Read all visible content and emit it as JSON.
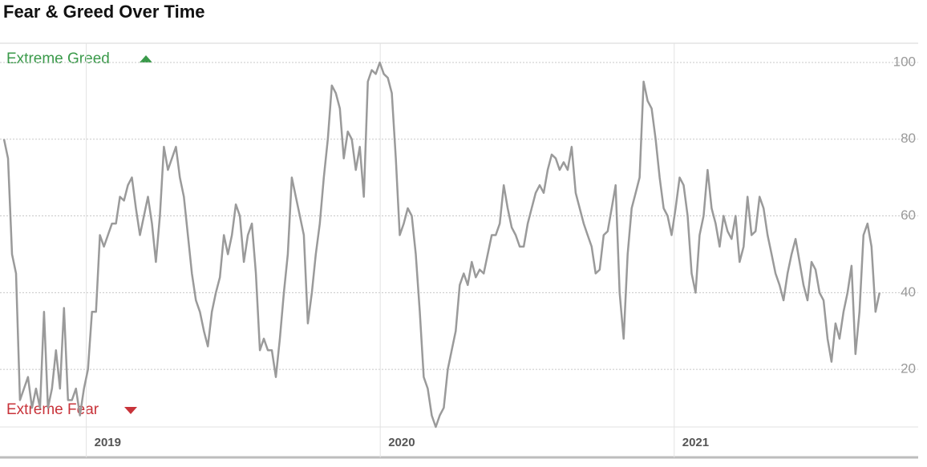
{
  "chart_data": {
    "type": "line",
    "title": "Fear & Greed Over Time",
    "annotations": [
      "Extreme Greed",
      "Extreme Fear"
    ],
    "xlim": [
      2018.72,
      2021.83
    ],
    "xticks": [
      2019,
      2020,
      2021
    ],
    "ylim": [
      5,
      105
    ],
    "yticks": [
      20,
      40,
      60,
      80,
      100
    ],
    "grid": true,
    "series": [
      {
        "color": "#9a9a9a",
        "x": [
          2018.72,
          2018.7336,
          2018.7472,
          2018.7608,
          2018.7744,
          2018.788,
          2018.8016,
          2018.8152,
          2018.8288,
          2018.8424,
          2018.856,
          2018.8696,
          2018.8832,
          2018.8968,
          2018.9104,
          2018.924,
          2018.9376,
          2018.9512,
          2018.9648,
          2018.9784,
          2018.992,
          2019.0056,
          2019.0192,
          2019.0328,
          2019.0464,
          2019.06,
          2019.0736,
          2019.0872,
          2019.1008,
          2019.1144,
          2019.128,
          2019.1416,
          2019.1552,
          2019.1688,
          2019.1824,
          2019.196,
          2019.2096,
          2019.2232,
          2019.2368,
          2019.2504,
          2019.264,
          2019.2776,
          2019.2912,
          2019.3048,
          2019.3184,
          2019.332,
          2019.3456,
          2019.3592,
          2019.3728,
          2019.3864,
          2019.4,
          2019.4136,
          2019.4272,
          2019.4408,
          2019.4544,
          2019.468,
          2019.4816,
          2019.4952,
          2019.5088,
          2019.5224,
          2019.536,
          2019.5496,
          2019.5632,
          2019.5768,
          2019.5904,
          2019.604,
          2019.6176,
          2019.6312,
          2019.6448,
          2019.6584,
          2019.672,
          2019.6856,
          2019.6992,
          2019.7128,
          2019.7264,
          2019.74,
          2019.7536,
          2019.7672,
          2019.7808,
          2019.7944,
          2019.808,
          2019.8216,
          2019.8352,
          2019.8488,
          2019.8624,
          2019.876,
          2019.8896,
          2019.9032,
          2019.9168,
          2019.9304,
          2019.944,
          2019.9576,
          2019.9712,
          2019.9848,
          2019.9984,
          2020.012,
          2020.0256,
          2020.0392,
          2020.0528,
          2020.0664,
          2020.08,
          2020.0936,
          2020.1072,
          2020.1208,
          2020.1344,
          2020.148,
          2020.1616,
          2020.1752,
          2020.1888,
          2020.2024,
          2020.216,
          2020.2296,
          2020.2432,
          2020.2568,
          2020.2704,
          2020.284,
          2020.2976,
          2020.3112,
          2020.3248,
          2020.3384,
          2020.352,
          2020.3656,
          2020.3792,
          2020.3928,
          2020.4064,
          2020.42,
          2020.4336,
          2020.4472,
          2020.4608,
          2020.4744,
          2020.488,
          2020.5016,
          2020.5152,
          2020.5288,
          2020.5424,
          2020.556,
          2020.5696,
          2020.5832,
          2020.5968,
          2020.6104,
          2020.624,
          2020.6376,
          2020.6512,
          2020.6648,
          2020.6784,
          2020.692,
          2020.7056,
          2020.7192,
          2020.7328,
          2020.7464,
          2020.76,
          2020.7736,
          2020.7872,
          2020.8008,
          2020.8144,
          2020.828,
          2020.8416,
          2020.8552,
          2020.8688,
          2020.8824,
          2020.896,
          2020.9096,
          2020.9232,
          2020.9368,
          2020.9504,
          2020.964,
          2020.9776,
          2020.9912,
          2021.0048,
          2021.0184,
          2021.032,
          2021.0456,
          2021.0592,
          2021.0728,
          2021.0864,
          2021.1,
          2021.1136,
          2021.1272,
          2021.1408,
          2021.1544,
          2021.168,
          2021.1816,
          2021.1952,
          2021.2088,
          2021.2224,
          2021.236,
          2021.2496,
          2021.2632,
          2021.2768,
          2021.2904,
          2021.304,
          2021.3176,
          2021.3312,
          2021.3448,
          2021.3584,
          2021.372,
          2021.3856,
          2021.3992,
          2021.4128,
          2021.4264,
          2021.44,
          2021.4536,
          2021.4672,
          2021.4808,
          2021.4944,
          2021.508,
          2021.5216,
          2021.5352,
          2021.5488,
          2021.5624,
          2021.576,
          2021.5896,
          2021.6032,
          2021.6168,
          2021.6304,
          2021.644,
          2021.6576,
          2021.6712,
          2021.6848,
          2021.6984
        ],
        "values": [
          80,
          75,
          50,
          45,
          12,
          15,
          18,
          10,
          15,
          10,
          35,
          10,
          15,
          25,
          15,
          36,
          12,
          12,
          15,
          8,
          15,
          20,
          35,
          35,
          55,
          52,
          55,
          58,
          58,
          65,
          64,
          68,
          70,
          62,
          55,
          60,
          65,
          58,
          48,
          60,
          78,
          72,
          75,
          78,
          70,
          65,
          55,
          45,
          38,
          35,
          30,
          26,
          35,
          40,
          44,
          55,
          50,
          55,
          63,
          60,
          48,
          55,
          58,
          45,
          25,
          28,
          25,
          25,
          18,
          28,
          40,
          50,
          70,
          65,
          60,
          55,
          32,
          40,
          50,
          58,
          70,
          80,
          94,
          92,
          88,
          75,
          82,
          80,
          72,
          78,
          65,
          95,
          98,
          97,
          100,
          97,
          96,
          92,
          75,
          55,
          58,
          62,
          60,
          50,
          35,
          18,
          15,
          8,
          5,
          8,
          10,
          20,
          25,
          30,
          42,
          45,
          42,
          48,
          44,
          46,
          45,
          50,
          55,
          55,
          58,
          68,
          62,
          57,
          55,
          52,
          52,
          58,
          62,
          66,
          68,
          66,
          72,
          76,
          75,
          72,
          74,
          72,
          78,
          66,
          62,
          58,
          55,
          52,
          45,
          46,
          55,
          56,
          62,
          68,
          40,
          28,
          50,
          62,
          66,
          70,
          95,
          90,
          88,
          80,
          70,
          62,
          60,
          55,
          62,
          70,
          68,
          60,
          45,
          40,
          55,
          60,
          72,
          62,
          58,
          52,
          60,
          56,
          54,
          60,
          48,
          52,
          65,
          55,
          56,
          65,
          62,
          55,
          50,
          45,
          42,
          38,
          45,
          50,
          54,
          48,
          42,
          38,
          48,
          46,
          40,
          38,
          28,
          22,
          32,
          28,
          35,
          40,
          47,
          24,
          35,
          55,
          58,
          52,
          35,
          40
        ]
      }
    ]
  }
}
